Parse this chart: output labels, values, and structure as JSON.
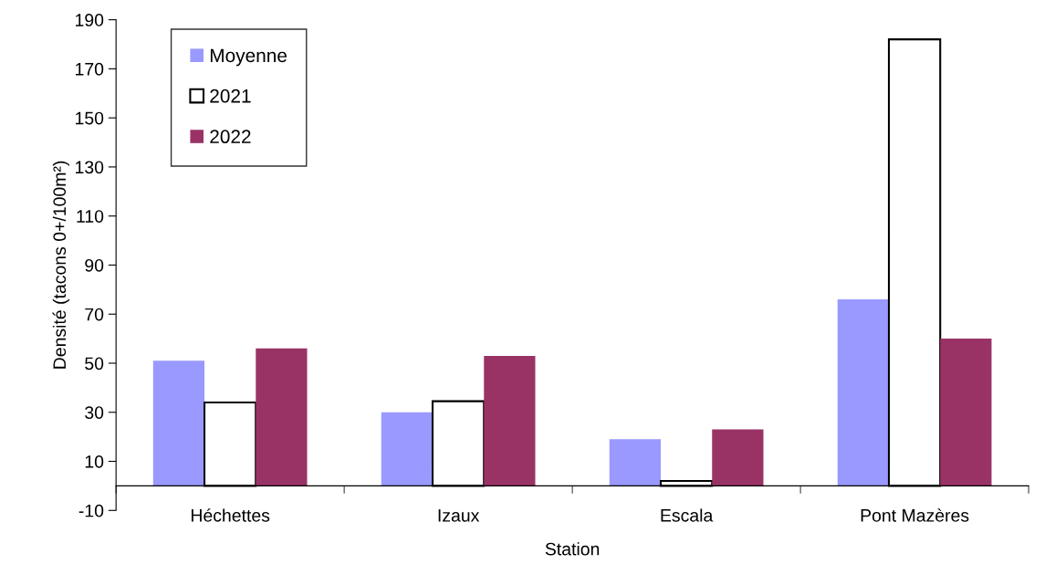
{
  "chart_data": {
    "type": "bar",
    "xlabel": "Station",
    "ylabel": "Densité (tacons 0+/100m²)",
    "categories": [
      "Héchettes",
      "Izaux",
      "Escala",
      "Pont Mazères"
    ],
    "series": [
      {
        "name": "Moyenne",
        "color": "#9999ff",
        "values": [
          51,
          30,
          19,
          76
        ]
      },
      {
        "name": "2021",
        "color": "#ffffff",
        "values": [
          34,
          34.5,
          2,
          182
        ]
      },
      {
        "name": "2022",
        "color": "#993366",
        "values": [
          56,
          53,
          23,
          60
        ]
      }
    ],
    "ylim": [
      -10,
      190
    ],
    "yticks": [
      -10,
      10,
      30,
      50,
      70,
      90,
      110,
      130,
      150,
      170,
      190
    ],
    "grid": false,
    "legend": "top left"
  }
}
